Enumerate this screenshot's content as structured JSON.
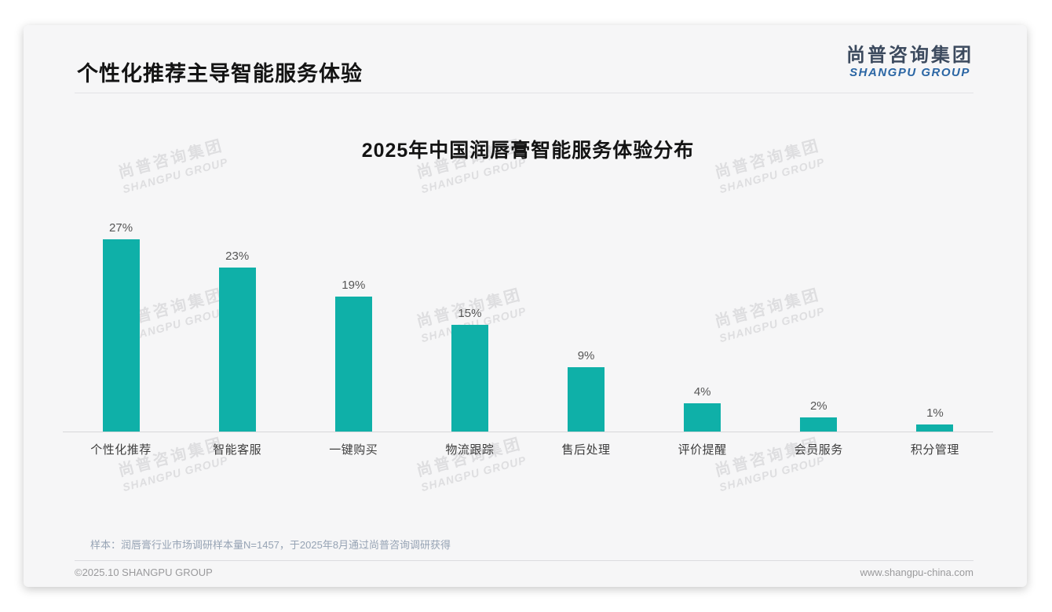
{
  "page": {
    "title": "个性化推荐主导智能服务体验",
    "logo": {
      "cn": "尚普咨询集团",
      "en": "SHANGPU GROUP"
    },
    "watermark": {
      "line1": "尚普咨询集团",
      "line2": "SHANGPU GROUP"
    },
    "footnote": "样本：润唇膏行业市场调研样本量N=1457，于2025年8月通过尚普咨询调研获得",
    "footer": {
      "left": "©2025.10 SHANGPU GROUP",
      "right": "www.shangpu-china.com"
    }
  },
  "chart_data": {
    "type": "bar",
    "title": "2025年中国润唇膏智能服务体验分布",
    "categories": [
      "个性化推荐",
      "智能客服",
      "一键购买",
      "物流跟踪",
      "售后处理",
      "评价提醒",
      "会员服务",
      "积分管理"
    ],
    "values": [
      27,
      23,
      19,
      15,
      9,
      4,
      2,
      1
    ],
    "value_labels": [
      "27%",
      "23%",
      "19%",
      "15%",
      "9%",
      "4%",
      "2%",
      "1%"
    ],
    "unit": "%",
    "bar_color": "#0fb0a8",
    "ylim": [
      0,
      30
    ],
    "grid": false,
    "legend": false,
    "xlabel": "",
    "ylabel": ""
  }
}
